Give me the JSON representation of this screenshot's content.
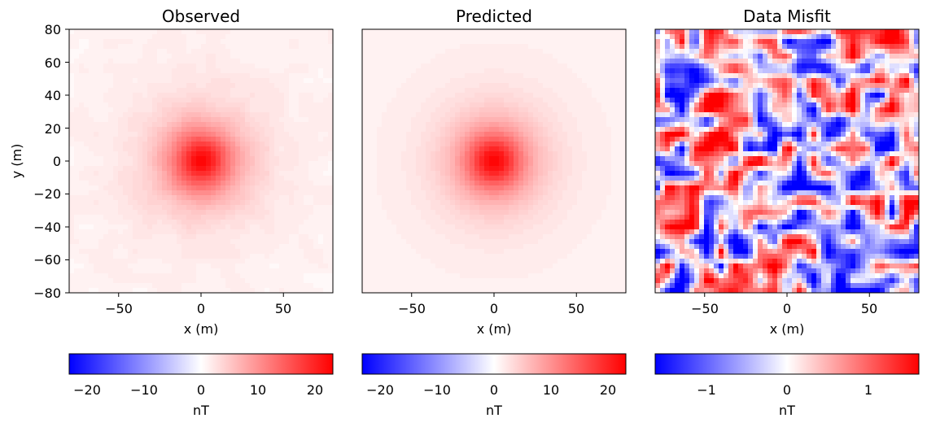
{
  "chart_data": [
    {
      "type": "heatmap",
      "title": "Observed",
      "xlabel": "x (m)",
      "ylabel": "y (m)",
      "xlim": [
        -80,
        80
      ],
      "ylim": [
        -80,
        80
      ],
      "xticks": [
        "−50",
        "0",
        "50"
      ],
      "yticks": [
        "80",
        "60",
        "40",
        "20",
        "0",
        "−20",
        "−40",
        "−60",
        "−80"
      ],
      "field": {
        "shape": "gaussian anomaly",
        "center": [
          0,
          0
        ],
        "peak_nT": 22,
        "noise_nT": 1
      },
      "colormap": "bwr",
      "colorbar": {
        "label": "nT",
        "range": [
          -23,
          23
        ],
        "ticks": [
          "−20",
          "−10",
          "0",
          "10",
          "20"
        ]
      }
    },
    {
      "type": "heatmap",
      "title": "Predicted",
      "xlabel": "x (m)",
      "xlim": [
        -80,
        80
      ],
      "ylim": [
        -80,
        80
      ],
      "xticks": [
        "−50",
        "0",
        "50"
      ],
      "field": {
        "shape": "gaussian anomaly",
        "center": [
          0,
          0
        ],
        "peak_nT": 22,
        "noise_nT": 0
      },
      "colormap": "bwr",
      "colorbar": {
        "label": "nT",
        "range": [
          -23,
          23
        ],
        "ticks": [
          "−20",
          "−10",
          "0",
          "10",
          "20"
        ]
      }
    },
    {
      "type": "heatmap",
      "title": "Data Misfit",
      "xlabel": "x (m)",
      "xlim": [
        -80,
        80
      ],
      "ylim": [
        -80,
        80
      ],
      "xticks": [
        "−50",
        "0",
        "50"
      ],
      "field": {
        "shape": "random noise",
        "amplitude_nT": 1.6
      },
      "colormap": "bwr",
      "colorbar": {
        "label": "nT",
        "range": [
          -1.62,
          1.62
        ],
        "ticks": [
          "−1",
          "0",
          "1"
        ]
      }
    }
  ]
}
